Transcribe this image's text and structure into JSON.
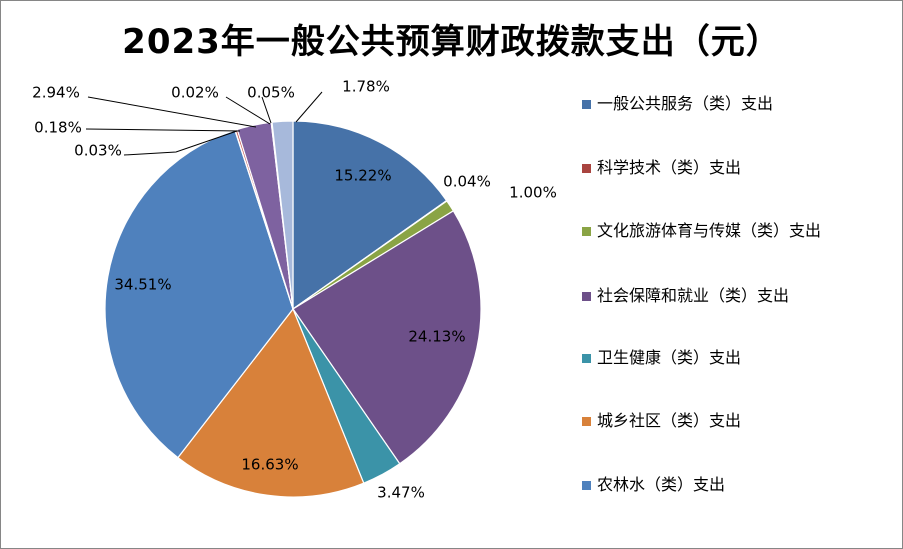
{
  "chart_data": {
    "type": "pie",
    "title": "2023年一般公共预算财政拨款支出（元）",
    "legend_position": "right",
    "slices": [
      {
        "name": "一般公共服务（类）支出",
        "value": 15.22,
        "label": "15.22%",
        "color": "#4672A8"
      },
      {
        "name": "科学技术（类）支出",
        "value": 0.04,
        "label": "0.04%",
        "color": "#A9443F"
      },
      {
        "name": "文化旅游体育与传媒（类）支出",
        "value": 1.0,
        "label": "1.00%",
        "color": "#8AA445"
      },
      {
        "name": "社会保障和就业（类）支出",
        "value": 24.13,
        "label": "24.13%",
        "color": "#6D5089"
      },
      {
        "name": "卫生健康（类）支出",
        "value": 3.47,
        "label": "3.47%",
        "color": "#3B93A8"
      },
      {
        "name": "城乡社区（类）支出",
        "value": 16.63,
        "label": "16.63%",
        "color": "#D8813A"
      },
      {
        "name": "农林水（类）支出",
        "value": 34.51,
        "label": "34.51%",
        "color": "#4F81BD"
      },
      {
        "name": "",
        "value": 0.03,
        "label": "0.03%",
        "color": "#B6C77C"
      },
      {
        "name": "",
        "value": 0.18,
        "label": "0.18%",
        "color": "#C0504D"
      },
      {
        "name": "",
        "value": 2.94,
        "label": "2.94%",
        "color": "#7E62A0"
      },
      {
        "name": "",
        "value": 0.02,
        "label": "0.02%",
        "color": "#4BACC6"
      },
      {
        "name": "",
        "value": 0.05,
        "label": "0.05%",
        "color": "#F79646"
      },
      {
        "name": "",
        "value": 1.78,
        "label": "1.78%",
        "color": "#A7B9DB"
      }
    ]
  }
}
